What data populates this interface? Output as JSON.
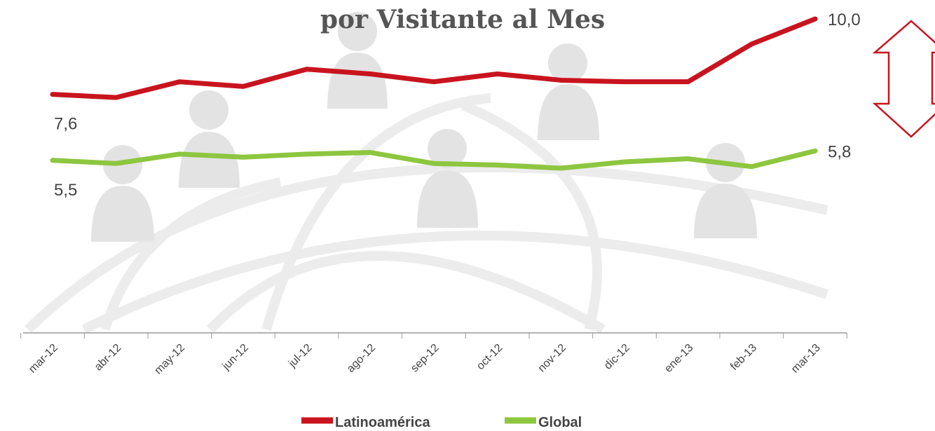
{
  "chart_data": {
    "type": "line",
    "title": "por Visitante al Mes",
    "categories": [
      "mar-12",
      "abr-12",
      "may-12",
      "jun-12",
      "jul-12",
      "ago-12",
      "sep-12",
      "oct-12",
      "nov-12",
      "dic-12",
      "ene-13",
      "feb-13",
      "mar-13"
    ],
    "series": [
      {
        "name": "Latinoamérica",
        "color": "#c8141e",
        "values": [
          7.6,
          7.5,
          8.0,
          7.85,
          8.4,
          8.25,
          8.0,
          8.25,
          8.05,
          8.0,
          8.0,
          9.2,
          10.0
        ],
        "value_labels": [
          "7,6",
          null,
          null,
          null,
          null,
          null,
          null,
          null,
          null,
          null,
          null,
          null,
          "10,0"
        ]
      },
      {
        "name": "Global",
        "color": "#8dc63f",
        "values": [
          5.5,
          5.4,
          5.7,
          5.6,
          5.7,
          5.75,
          5.4,
          5.35,
          5.25,
          5.45,
          5.55,
          5.3,
          5.8
        ],
        "value_labels": [
          "5,5",
          null,
          null,
          null,
          null,
          null,
          null,
          null,
          null,
          null,
          null,
          null,
          "5,8"
        ]
      }
    ]
  }
}
